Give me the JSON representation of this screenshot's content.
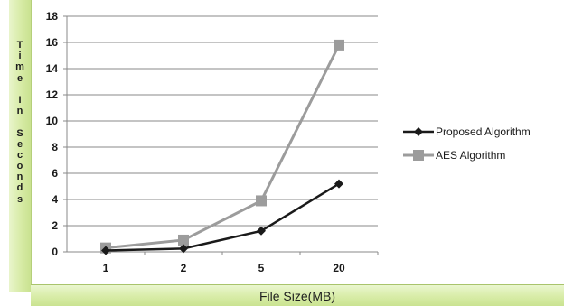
{
  "chart_data": {
    "type": "line",
    "categories": [
      "1",
      "2",
      "5",
      "20"
    ],
    "series": [
      {
        "name": "Proposed Algorithm",
        "values": [
          0.1,
          0.25,
          1.6,
          5.2
        ],
        "color": "#1a1a1a",
        "marker": "diamond"
      },
      {
        "name": "AES Algorithm",
        "values": [
          0.3,
          0.9,
          3.9,
          15.8
        ],
        "color": "#9c9c9c",
        "marker": "square"
      }
    ],
    "ylabel": "Time In Seconds",
    "xlabel": "File Size(MB)",
    "ylim": [
      0,
      18
    ],
    "yticks": [
      0,
      2,
      4,
      6,
      8,
      10,
      12,
      14,
      16,
      18
    ],
    "grid": "horizontal",
    "legend_position": "right"
  },
  "axis_titles": {
    "y": "Time In Seconds",
    "x": "File Size(MB)"
  },
  "colors": {
    "label_strip": "#d7eba6",
    "proposed": "#1a1a1a",
    "aes": "#9c9c9c"
  }
}
